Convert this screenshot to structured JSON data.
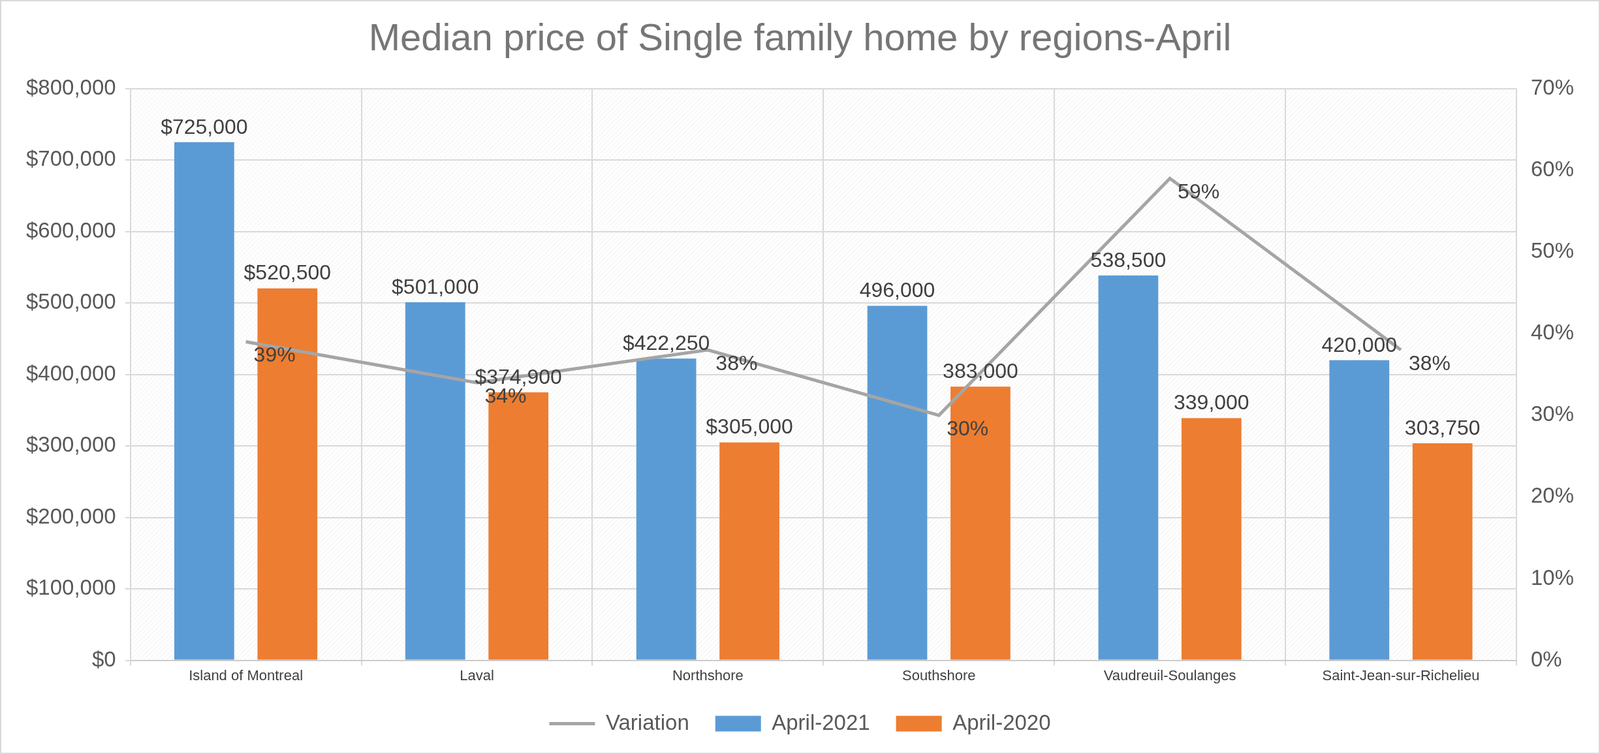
{
  "chart_data": {
    "type": "bar",
    "title": "Median price of Single family home by regions-April",
    "categories": [
      "Island of Montreal",
      "Laval",
      "Northshore",
      "Southshore",
      "Vaudreuil-Soulanges",
      "Saint-Jean-sur-Richelieu"
    ],
    "series": [
      {
        "name": "April-2021",
        "type": "bar",
        "color": "#5b9bd5",
        "values": [
          725000,
          501000,
          422250,
          496000,
          538500,
          420000
        ],
        "value_labels": [
          "$725,000",
          "$501,000",
          "$422,250",
          "496,000",
          "538,500",
          "420,000"
        ]
      },
      {
        "name": "April-2020",
        "type": "bar",
        "color": "#ed7d31",
        "values": [
          520500,
          374900,
          305000,
          383000,
          339000,
          303750
        ],
        "value_labels": [
          "$520,500",
          "$374,900",
          "$305,000",
          "383,000",
          "339,000",
          "303,750"
        ]
      },
      {
        "name": "Variation",
        "type": "line",
        "color": "#a5a5a5",
        "axis": "y2",
        "marker": "none",
        "values": [
          39,
          34,
          38,
          30,
          59,
          38
        ],
        "value_labels": [
          "39%",
          "34%",
          "38%",
          "30%",
          "59%",
          "38%"
        ]
      }
    ],
    "ylim": [
      0,
      800000
    ],
    "yticks": [
      {
        "value": 0,
        "label": "$0"
      },
      {
        "value": 100000,
        "label": "$100,000"
      },
      {
        "value": 200000,
        "label": "$200,000"
      },
      {
        "value": 300000,
        "label": "$300,000"
      },
      {
        "value": 400000,
        "label": "$400,000"
      },
      {
        "value": 500000,
        "label": "$500,000"
      },
      {
        "value": 600000,
        "label": "$600,000"
      },
      {
        "value": 700000,
        "label": "$700,000"
      },
      {
        "value": 800000,
        "label": "$800,000"
      }
    ],
    "y2lim": [
      0,
      70
    ],
    "y2ticks": [
      {
        "value": 0,
        "label": "0%"
      },
      {
        "value": 10,
        "label": "10%"
      },
      {
        "value": 20,
        "label": "20%"
      },
      {
        "value": 30,
        "label": "30%"
      },
      {
        "value": 40,
        "label": "40%"
      },
      {
        "value": 50,
        "label": "50%"
      },
      {
        "value": 60,
        "label": "60%"
      },
      {
        "value": 70,
        "label": "70%"
      }
    ],
    "grid": true,
    "legend": "bottom",
    "data_labels": true
  }
}
